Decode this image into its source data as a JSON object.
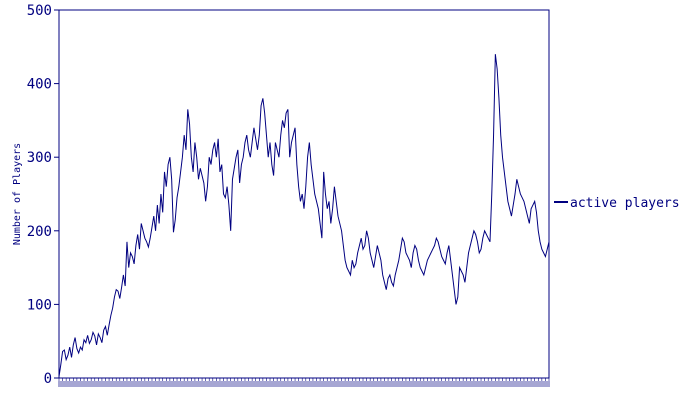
{
  "chart_data": {
    "type": "line",
    "title": "",
    "xlabel": "",
    "ylabel": "Number of Players",
    "ylim": [
      0,
      500
    ],
    "yticks": [
      "0",
      "100",
      "200",
      "300",
      "400",
      "500"
    ],
    "grid": false,
    "legend_position": "right",
    "colors": {
      "line": "#000080",
      "axis": "#000080",
      "background": "#ffffff"
    },
    "series": [
      {
        "name": "active players",
        "values": [
          2,
          18,
          36,
          38,
          25,
          31,
          42,
          28,
          45,
          55,
          40,
          34,
          42,
          38,
          52,
          48,
          58,
          47,
          52,
          62,
          57,
          45,
          60,
          55,
          48,
          65,
          70,
          58,
          72,
          85,
          95,
          110,
          120,
          118,
          108,
          123,
          140,
          125,
          185,
          150,
          170,
          165,
          155,
          180,
          195,
          175,
          210,
          200,
          190,
          185,
          178,
          190,
          205,
          220,
          200,
          235,
          210,
          250,
          225,
          280,
          260,
          290,
          300,
          270,
          198,
          215,
          245,
          260,
          280,
          300,
          330,
          310,
          365,
          345,
          300,
          280,
          320,
          300,
          270,
          285,
          275,
          265,
          240,
          260,
          300,
          290,
          310,
          320,
          300,
          325,
          280,
          290,
          250,
          245,
          260,
          235,
          200,
          270,
          285,
          300,
          310,
          265,
          290,
          300,
          320,
          330,
          310,
          300,
          320,
          340,
          325,
          310,
          330,
          370,
          380,
          360,
          330,
          300,
          320,
          290,
          275,
          320,
          310,
          300,
          330,
          350,
          340,
          360,
          365,
          300,
          320,
          330,
          340,
          290,
          260,
          240,
          250,
          230,
          260,
          300,
          320,
          290,
          270,
          250,
          240,
          230,
          210,
          190,
          280,
          250,
          230,
          240,
          210,
          230,
          260,
          240,
          220,
          210,
          200,
          180,
          160,
          150,
          145,
          140,
          160,
          150,
          155,
          170,
          180,
          190,
          175,
          180,
          200,
          190,
          170,
          160,
          150,
          165,
          180,
          170,
          160,
          140,
          130,
          120,
          135,
          140,
          130,
          125,
          140,
          150,
          160,
          175,
          190,
          185,
          170,
          165,
          160,
          150,
          170,
          180,
          175,
          160,
          150,
          145,
          140,
          150,
          160,
          165,
          170,
          175,
          180,
          190,
          185,
          175,
          165,
          160,
          155,
          170,
          180,
          160,
          140,
          120,
          100,
          110,
          150,
          145,
          140,
          130,
          150,
          170,
          180,
          190,
          200,
          195,
          185,
          170,
          175,
          190,
          200,
          195,
          190,
          185,
          250,
          330,
          440,
          420,
          380,
          330,
          300,
          280,
          260,
          240,
          230,
          220,
          235,
          250,
          270,
          260,
          250,
          245,
          240,
          230,
          220,
          210,
          230,
          235,
          240,
          225,
          200,
          185,
          175,
          170,
          165,
          175,
          185
        ]
      }
    ]
  }
}
